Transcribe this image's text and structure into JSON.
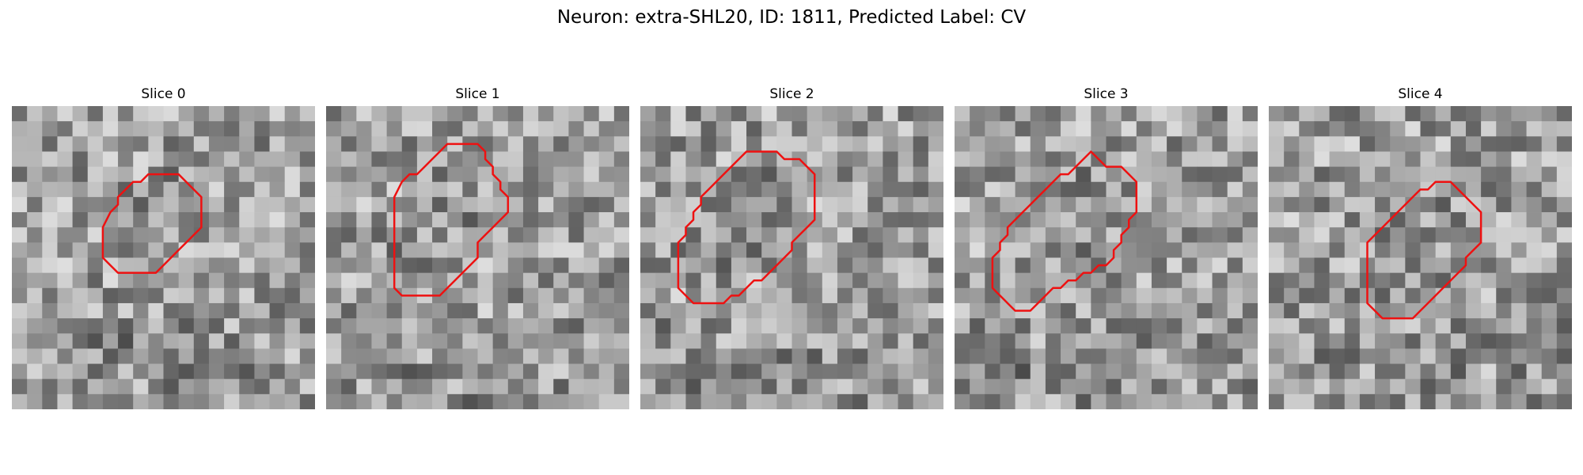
{
  "figure": {
    "title": "Neuron: extra-SHL20, ID: 1811, Predicted Label: CV",
    "contour_color": "#ee1111",
    "panels": [
      {
        "title": "Slice 0",
        "contour": [
          [
            10.0,
            4.5
          ],
          [
            11.0,
            4.5
          ],
          [
            11.5,
            5.0
          ],
          [
            12.0,
            5.5
          ],
          [
            12.5,
            6.0
          ],
          [
            12.5,
            7.0
          ],
          [
            12.5,
            8.0
          ],
          [
            12.0,
            8.5
          ],
          [
            11.5,
            9.0
          ],
          [
            11.0,
            9.5
          ],
          [
            10.5,
            10.0
          ],
          [
            10.0,
            10.5
          ],
          [
            9.5,
            11.0
          ],
          [
            9.0,
            11.0
          ],
          [
            8.0,
            11.0
          ],
          [
            7.0,
            11.0
          ],
          [
            6.5,
            10.5
          ],
          [
            6.0,
            10.0
          ],
          [
            6.0,
            9.0
          ],
          [
            6.0,
            8.0
          ],
          [
            6.5,
            7.0
          ],
          [
            7.0,
            6.5
          ],
          [
            7.0,
            6.0
          ],
          [
            7.5,
            5.5
          ],
          [
            8.0,
            5.0
          ],
          [
            8.5,
            5.0
          ],
          [
            9.0,
            4.5
          ]
        ]
      },
      {
        "title": "Slice 1",
        "contour": [
          [
            8.0,
            2.5
          ],
          [
            9.0,
            2.5
          ],
          [
            10.0,
            2.5
          ],
          [
            10.5,
            3.0
          ],
          [
            10.5,
            3.5
          ],
          [
            11.0,
            4.0
          ],
          [
            11.0,
            4.5
          ],
          [
            11.5,
            5.0
          ],
          [
            11.5,
            5.5
          ],
          [
            12.0,
            6.0
          ],
          [
            12.0,
            7.0
          ],
          [
            11.5,
            7.5
          ],
          [
            11.0,
            8.0
          ],
          [
            10.5,
            8.5
          ],
          [
            10.0,
            9.0
          ],
          [
            10.0,
            9.5
          ],
          [
            10.0,
            10.0
          ],
          [
            9.5,
            10.5
          ],
          [
            9.0,
            11.0
          ],
          [
            8.5,
            11.5
          ],
          [
            8.0,
            12.0
          ],
          [
            7.5,
            12.5
          ],
          [
            7.0,
            12.5
          ],
          [
            6.0,
            12.5
          ],
          [
            5.0,
            12.5
          ],
          [
            4.5,
            12.0
          ],
          [
            4.5,
            11.0
          ],
          [
            4.5,
            10.0
          ],
          [
            4.5,
            9.0
          ],
          [
            4.5,
            8.0
          ],
          [
            4.5,
            7.0
          ],
          [
            4.5,
            6.0
          ],
          [
            5.0,
            5.0
          ],
          [
            5.5,
            4.5
          ],
          [
            6.0,
            4.5
          ],
          [
            6.5,
            4.0
          ],
          [
            7.0,
            3.5
          ],
          [
            7.5,
            3.0
          ]
        ]
      },
      {
        "title": "Slice 2",
        "contour": [
          [
            6.5,
            3.5
          ],
          [
            7.0,
            3.0
          ],
          [
            7.5,
            3.0
          ],
          [
            8.0,
            3.0
          ],
          [
            9.0,
            3.0
          ],
          [
            9.5,
            3.5
          ],
          [
            10.5,
            3.5
          ],
          [
            11.0,
            4.0
          ],
          [
            11.5,
            4.5
          ],
          [
            11.5,
            5.5
          ],
          [
            11.5,
            6.5
          ],
          [
            11.5,
            7.5
          ],
          [
            11.0,
            8.0
          ],
          [
            10.5,
            8.5
          ],
          [
            10.0,
            9.0
          ],
          [
            10.0,
            9.5
          ],
          [
            9.5,
            10.0
          ],
          [
            9.0,
            10.5
          ],
          [
            8.5,
            11.0
          ],
          [
            8.0,
            11.5
          ],
          [
            7.5,
            11.5
          ],
          [
            7.0,
            12.0
          ],
          [
            6.5,
            12.5
          ],
          [
            6.0,
            12.5
          ],
          [
            5.5,
            13.0
          ],
          [
            5.0,
            13.0
          ],
          [
            4.5,
            13.0
          ],
          [
            4.0,
            13.0
          ],
          [
            3.5,
            13.0
          ],
          [
            3.0,
            12.5
          ],
          [
            2.5,
            12.0
          ],
          [
            2.5,
            11.0
          ],
          [
            2.5,
            10.0
          ],
          [
            2.5,
            9.0
          ],
          [
            3.0,
            8.5
          ],
          [
            3.0,
            8.0
          ],
          [
            3.5,
            7.5
          ],
          [
            3.5,
            7.0
          ],
          [
            4.0,
            6.5
          ],
          [
            4.0,
            6.0
          ],
          [
            4.5,
            5.5
          ],
          [
            5.0,
            5.0
          ],
          [
            5.5,
            4.5
          ],
          [
            6.0,
            4.0
          ]
        ]
      },
      {
        "title": "Slice 3",
        "contour": [
          [
            9.0,
            3.0
          ],
          [
            9.5,
            3.5
          ],
          [
            10.0,
            4.0
          ],
          [
            11.0,
            4.0
          ],
          [
            11.5,
            4.5
          ],
          [
            12.0,
            5.0
          ],
          [
            12.0,
            6.0
          ],
          [
            12.0,
            7.0
          ],
          [
            11.5,
            7.5
          ],
          [
            11.5,
            8.0
          ],
          [
            11.0,
            8.5
          ],
          [
            11.0,
            9.0
          ],
          [
            10.5,
            9.5
          ],
          [
            10.5,
            10.0
          ],
          [
            10.0,
            10.5
          ],
          [
            9.5,
            10.5
          ],
          [
            9.0,
            11.0
          ],
          [
            8.5,
            11.0
          ],
          [
            8.0,
            11.5
          ],
          [
            7.5,
            11.5
          ],
          [
            7.0,
            12.0
          ],
          [
            6.5,
            12.0
          ],
          [
            6.0,
            12.5
          ],
          [
            5.5,
            13.0
          ],
          [
            5.0,
            13.5
          ],
          [
            4.0,
            13.5
          ],
          [
            3.5,
            13.0
          ],
          [
            3.0,
            12.5
          ],
          [
            2.5,
            12.0
          ],
          [
            2.5,
            11.0
          ],
          [
            2.5,
            10.0
          ],
          [
            3.0,
            9.5
          ],
          [
            3.0,
            9.0
          ],
          [
            3.5,
            8.5
          ],
          [
            3.5,
            8.0
          ],
          [
            4.0,
            7.5
          ],
          [
            4.5,
            7.0
          ],
          [
            5.0,
            6.5
          ],
          [
            5.5,
            6.0
          ],
          [
            6.0,
            5.5
          ],
          [
            6.5,
            5.0
          ],
          [
            7.0,
            4.5
          ],
          [
            7.5,
            4.5
          ],
          [
            8.0,
            4.0
          ],
          [
            8.5,
            3.5
          ]
        ]
      },
      {
        "title": "Slice 4",
        "contour": [
          [
            11.0,
            5.0
          ],
          [
            12.0,
            5.0
          ],
          [
            12.5,
            5.5
          ],
          [
            13.0,
            6.0
          ],
          [
            13.5,
            6.5
          ],
          [
            14.0,
            7.0
          ],
          [
            14.0,
            8.0
          ],
          [
            14.0,
            9.0
          ],
          [
            13.5,
            9.5
          ],
          [
            13.0,
            10.0
          ],
          [
            13.0,
            10.5
          ],
          [
            12.5,
            11.0
          ],
          [
            12.0,
            11.5
          ],
          [
            11.5,
            12.0
          ],
          [
            11.0,
            12.5
          ],
          [
            10.5,
            13.0
          ],
          [
            10.0,
            13.5
          ],
          [
            9.5,
            14.0
          ],
          [
            9.0,
            14.0
          ],
          [
            8.0,
            14.0
          ],
          [
            7.5,
            14.0
          ],
          [
            7.0,
            13.5
          ],
          [
            6.5,
            13.0
          ],
          [
            6.5,
            12.0
          ],
          [
            6.5,
            11.0
          ],
          [
            6.5,
            10.0
          ],
          [
            6.5,
            9.0
          ],
          [
            7.0,
            8.5
          ],
          [
            7.5,
            8.0
          ],
          [
            8.0,
            7.5
          ],
          [
            8.5,
            7.0
          ],
          [
            9.0,
            6.5
          ],
          [
            9.5,
            6.0
          ],
          [
            10.0,
            5.5
          ],
          [
            10.5,
            5.5
          ]
        ]
      }
    ]
  }
}
